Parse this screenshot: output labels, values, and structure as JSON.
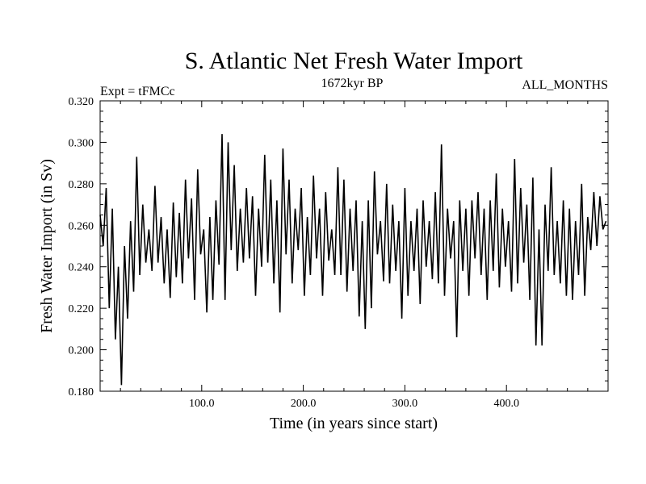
{
  "chart_data": {
    "type": "line",
    "title": "S. Atlantic Net Fresh Water Import",
    "subtitle_left": "Expt = tFMCc",
    "subtitle_center": "1672kyr BP",
    "subtitle_right": "ALL_MONTHS",
    "xlabel": "Time (in years since start)",
    "ylabel": "Fresh Water Import (in Sv)",
    "xlim": [
      0,
      500
    ],
    "ylim": [
      0.18,
      0.32
    ],
    "xticks": [
      100,
      200,
      300,
      400
    ],
    "xtick_labels": [
      "100.0",
      "200.0",
      "300.0",
      "400.0"
    ],
    "yticks": [
      0.18,
      0.2,
      0.22,
      0.24,
      0.26,
      0.28,
      0.3,
      0.32
    ],
    "ytick_labels": [
      "0.180",
      "0.200",
      "0.220",
      "0.240",
      "0.260",
      "0.280",
      "0.300",
      "0.320"
    ],
    "series": [
      {
        "name": "Fresh Water Import",
        "color": "#000000",
        "x": [
          0,
          3,
          6,
          9,
          12,
          15,
          18,
          21,
          24,
          27,
          30,
          33,
          36,
          39,
          42,
          45,
          48,
          51,
          54,
          57,
          60,
          63,
          66,
          69,
          72,
          75,
          78,
          81,
          84,
          87,
          90,
          93,
          96,
          99,
          102,
          105,
          108,
          111,
          114,
          117,
          120,
          123,
          126,
          129,
          132,
          135,
          138,
          141,
          144,
          147,
          150,
          153,
          156,
          159,
          162,
          165,
          168,
          171,
          174,
          177,
          180,
          183,
          186,
          189,
          192,
          195,
          198,
          201,
          204,
          207,
          210,
          213,
          216,
          219,
          222,
          225,
          228,
          231,
          234,
          237,
          240,
          243,
          246,
          249,
          252,
          255,
          258,
          261,
          264,
          267,
          270,
          273,
          276,
          279,
          282,
          285,
          288,
          291,
          294,
          297,
          300,
          303,
          306,
          309,
          312,
          315,
          318,
          321,
          324,
          327,
          330,
          333,
          336,
          339,
          342,
          345,
          348,
          351,
          354,
          357,
          360,
          363,
          366,
          369,
          372,
          375,
          378,
          381,
          384,
          387,
          390,
          393,
          396,
          399,
          402,
          405,
          408,
          411,
          414,
          417,
          420,
          423,
          426,
          429,
          432,
          435,
          438,
          441,
          444,
          447,
          450,
          453,
          456,
          459,
          462,
          465,
          468,
          471,
          474,
          477,
          480,
          483,
          486,
          489,
          492,
          495,
          498
        ],
        "y": [
          0.265,
          0.25,
          0.278,
          0.22,
          0.268,
          0.205,
          0.24,
          0.183,
          0.25,
          0.215,
          0.262,
          0.228,
          0.293,
          0.236,
          0.27,
          0.242,
          0.258,
          0.238,
          0.279,
          0.242,
          0.264,
          0.232,
          0.258,
          0.225,
          0.271,
          0.235,
          0.266,
          0.232,
          0.282,
          0.244,
          0.273,
          0.224,
          0.287,
          0.246,
          0.258,
          0.218,
          0.264,
          0.224,
          0.272,
          0.241,
          0.304,
          0.224,
          0.3,
          0.248,
          0.289,
          0.238,
          0.268,
          0.242,
          0.278,
          0.244,
          0.274,
          0.226,
          0.268,
          0.24,
          0.294,
          0.242,
          0.282,
          0.232,
          0.272,
          0.218,
          0.297,
          0.246,
          0.282,
          0.232,
          0.268,
          0.248,
          0.278,
          0.226,
          0.264,
          0.236,
          0.284,
          0.244,
          0.268,
          0.226,
          0.276,
          0.243,
          0.258,
          0.236,
          0.288,
          0.236,
          0.282,
          0.228,
          0.268,
          0.238,
          0.272,
          0.216,
          0.262,
          0.21,
          0.272,
          0.22,
          0.286,
          0.246,
          0.262,
          0.233,
          0.28,
          0.232,
          0.27,
          0.238,
          0.262,
          0.215,
          0.278,
          0.226,
          0.262,
          0.238,
          0.268,
          0.222,
          0.272,
          0.24,
          0.262,
          0.234,
          0.276,
          0.232,
          0.299,
          0.226,
          0.268,
          0.244,
          0.262,
          0.206,
          0.272,
          0.238,
          0.268,
          0.226,
          0.272,
          0.244,
          0.276,
          0.236,
          0.268,
          0.224,
          0.272,
          0.238,
          0.285,
          0.23,
          0.268,
          0.24,
          0.262,
          0.228,
          0.292,
          0.232,
          0.278,
          0.242,
          0.27,
          0.224,
          0.283,
          0.202,
          0.258,
          0.202,
          0.27,
          0.238,
          0.288,
          0.236,
          0.262,
          0.232,
          0.272,
          0.226,
          0.268,
          0.224,
          0.262,
          0.236,
          0.28,
          0.226,
          0.264,
          0.248,
          0.276,
          0.25,
          0.274,
          0.258,
          0.262
        ]
      }
    ]
  }
}
